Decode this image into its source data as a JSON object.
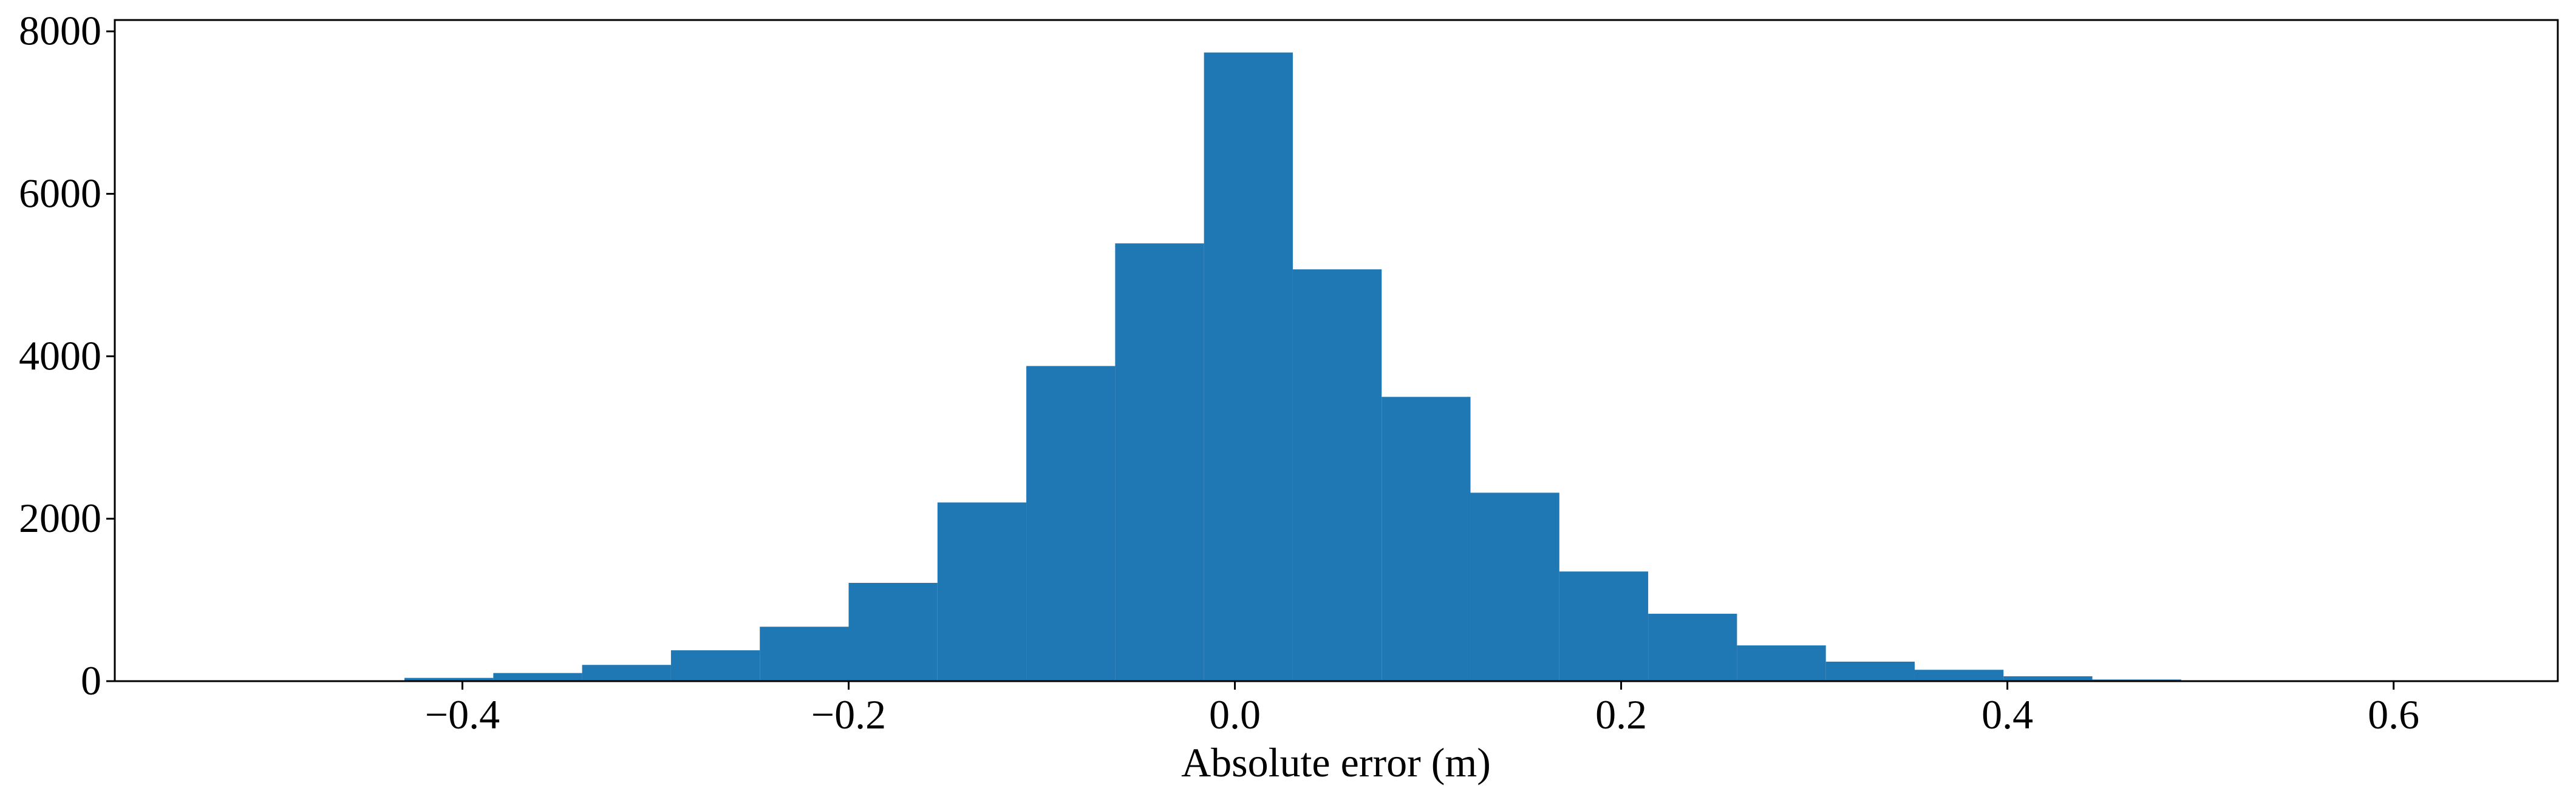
{
  "chart_data": {
    "type": "histogram",
    "xlabel": "Absolute error (m)",
    "bins": [
      -0.43,
      -0.384,
      -0.338,
      -0.292,
      -0.246,
      -0.2,
      -0.154,
      -0.108,
      -0.062,
      -0.016,
      0.03,
      0.076,
      0.122,
      0.168,
      0.214,
      0.26,
      0.306,
      0.352,
      0.398,
      0.444,
      0.49
    ],
    "values": [
      40,
      100,
      200,
      380,
      670,
      1210,
      2200,
      3880,
      5390,
      7740,
      5070,
      3500,
      2320,
      1350,
      830,
      440,
      240,
      140,
      60,
      20
    ],
    "color": "#1f77b4",
    "xlim": [
      -0.58,
      0.685
    ],
    "ylim": [
      0,
      8140
    ],
    "xticks": [
      {
        "value": -0.4,
        "label": "−0.4"
      },
      {
        "value": -0.2,
        "label": "−0.2"
      },
      {
        "value": 0.0,
        "label": "0.0"
      },
      0.2,
      0.4,
      0.6
    ],
    "yticks": [
      0,
      2000,
      4000,
      6000,
      8000
    ]
  }
}
